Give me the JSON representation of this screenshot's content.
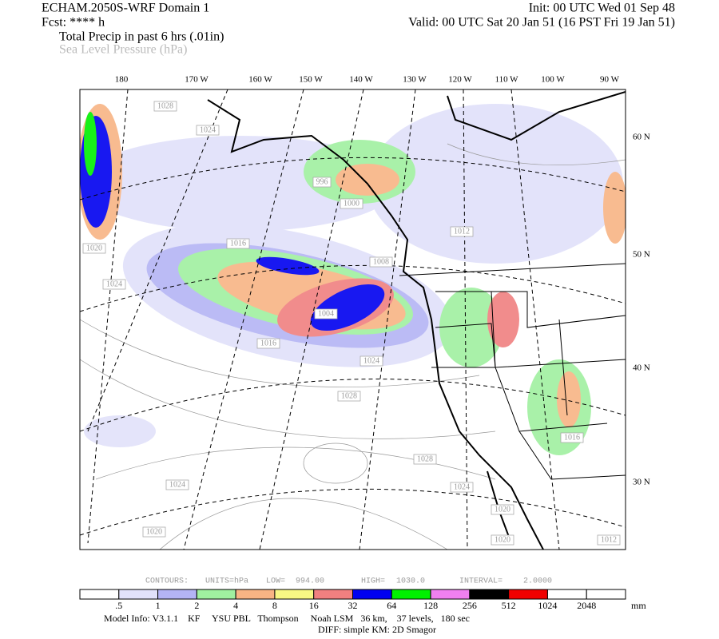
{
  "header": {
    "title": "ECHAM.2050S-WRF Domain 1",
    "forecast": "Fcst: **** h",
    "field1": "Total Precip in past 6 hrs (.01in)",
    "field2": "Sea Level Pressure (hPa)",
    "init": "Init: 00 UTC Wed 01 Sep 48",
    "valid": "Valid: 00 UTC Sat 20 Jan 51 (16 PST Fri 19 Jan 51)"
  },
  "map": {
    "lon_labels": [
      "180",
      "170 W",
      "160 W",
      "150 W",
      "140 W",
      "130 W",
      "120 W",
      "110 W",
      "100 W",
      "90 W"
    ],
    "lat_labels": [
      "60 N",
      "50 N",
      "40 N",
      "30 N"
    ],
    "contour_labels": [
      "1028",
      "1024",
      "1020",
      "1024",
      "1016",
      "996",
      "1000",
      "1012",
      "1008",
      "1004",
      "1016",
      "1024",
      "1028",
      "1028",
      "1024",
      "1020",
      "1020",
      "1024",
      "1020",
      "1016",
      "1012"
    ]
  },
  "contours": {
    "text": "CONTOURS:",
    "units": "UNITS=hPa",
    "low": "LOW=",
    "low_value": "994.00",
    "high": "HIGH=",
    "high_value": "1030.0",
    "interval": "INTERVAL=",
    "interval_value": "2.0000"
  },
  "colorbar": {
    "colors": [
      "#ffffff",
      "#e1e1fa",
      "#b4b4f5",
      "#a0f0a0",
      "#f8b484",
      "#f8f884",
      "#f08080",
      "#0000f0",
      "#00f000",
      "#f080f0",
      "#000000",
      "#f00000",
      "#ffffff",
      "#ffffff"
    ],
    "labels": [
      ".5",
      "1",
      "2",
      "4",
      "8",
      "16",
      "32",
      "64",
      "128",
      "256",
      "512",
      "1024",
      "2048"
    ],
    "units": "mm"
  },
  "footer": {
    "model_info": "Model Info: V3.1.1    KF     YSU PBL   Thompson     Noah LSM   36 km,    37 levels,   180 sec",
    "diff": "DIFF: simple KM: 2D Smagor"
  }
}
